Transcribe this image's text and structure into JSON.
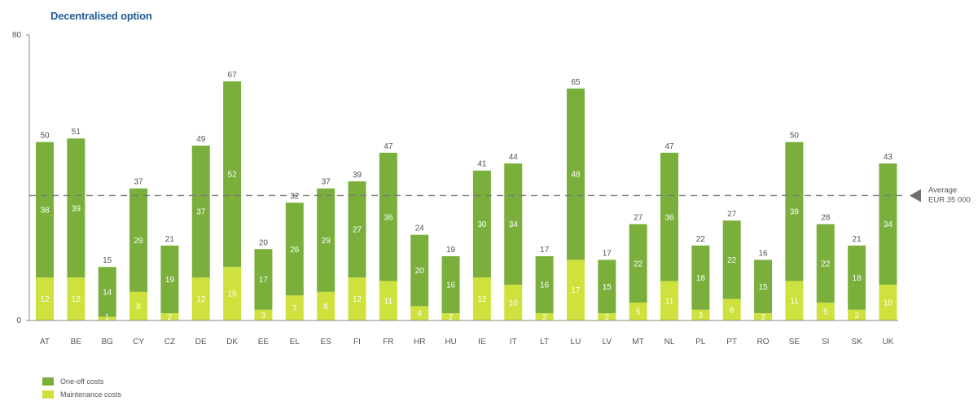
{
  "title": "Decentralised option",
  "colors": {
    "one_off": "#7aaf3c",
    "maintenance": "#cfe13c",
    "axis": "#888888",
    "avg_line": "#777777"
  },
  "average": {
    "value": 35,
    "label_line1": "Average",
    "label_line2": "EUR 35 000"
  },
  "chart_data": {
    "type": "bar",
    "stacked": true,
    "title": "Decentralised option",
    "ylim": [
      0,
      80
    ],
    "yticks": [
      "0",
      "80"
    ],
    "categories": [
      "AT",
      "BE",
      "BG",
      "CY",
      "CZ",
      "DE",
      "DK",
      "EE",
      "EL",
      "ES",
      "FI",
      "FR",
      "HR",
      "HU",
      "IE",
      "IT",
      "LT",
      "LU",
      "LV",
      "MT",
      "NL",
      "PL",
      "PT",
      "RO",
      "SE",
      "SI",
      "SK",
      "UK"
    ],
    "series": [
      {
        "name": "Maintenance costs",
        "values": [
          12,
          12,
          1,
          8,
          2,
          12,
          15,
          3,
          7,
          8,
          12,
          11,
          4,
          2,
          12,
          10,
          2,
          17,
          2,
          5,
          11,
          3,
          6,
          2,
          11,
          5,
          3,
          10
        ]
      },
      {
        "name": "One-off costs",
        "values": [
          38,
          39,
          14,
          29,
          19,
          37,
          52,
          17,
          26,
          29,
          27,
          36,
          20,
          16,
          30,
          34,
          16,
          48,
          15,
          22,
          36,
          18,
          22,
          15,
          39,
          22,
          18,
          34
        ]
      }
    ],
    "totals": [
      50,
      51,
      15,
      37,
      21,
      49,
      67,
      20,
      32,
      37,
      39,
      47,
      24,
      19,
      41,
      44,
      17,
      65,
      17,
      27,
      47,
      22,
      27,
      16,
      50,
      28,
      21,
      43
    ],
    "legend": {
      "position": "bottom-left",
      "entries": [
        "One-off costs",
        "Maintenance costs"
      ]
    }
  }
}
